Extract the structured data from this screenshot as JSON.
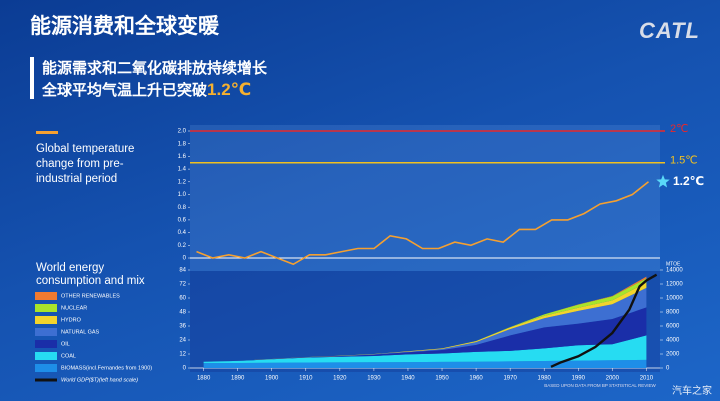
{
  "title": "能源消费和全球变暖",
  "logo": "CATL",
  "subtitle": {
    "line1": "能源需求和二氧化碳排放持续增长",
    "line2": "全球平均气温上升已突破",
    "highlight": "1.2℃"
  },
  "watermark": "汽车之家",
  "chart_data": [
    {
      "type": "line",
      "legend": "Global temperature change from pre-industrial period",
      "color": "#f5a030",
      "x": [
        1880,
        1885,
        1890,
        1895,
        1900,
        1905,
        1910,
        1915,
        1920,
        1925,
        1930,
        1935,
        1940,
        1945,
        1950,
        1955,
        1960,
        1965,
        1970,
        1975,
        1980,
        1985,
        1990,
        1995,
        2000,
        2005,
        2010,
        2015,
        2020
      ],
      "values": [
        0.1,
        0.0,
        0.05,
        0.0,
        0.1,
        0.0,
        -0.1,
        0.05,
        0.05,
        0.1,
        0.15,
        0.15,
        0.35,
        0.3,
        0.15,
        0.15,
        0.25,
        0.2,
        0.3,
        0.25,
        0.45,
        0.45,
        0.6,
        0.6,
        0.7,
        0.85,
        0.9,
        1.0,
        1.2
      ],
      "xlim": [
        1878,
        2022
      ],
      "ylim": [
        -0.2,
        2.0
      ],
      "yticks": [
        {
          "value": 2,
          "label": "2.0"
        },
        1.8,
        1.6,
        1.4,
        1.2,
        {
          "value": 1,
          "label": "1.0"
        },
        0.8,
        0.6,
        0.4,
        0.2,
        0
      ],
      "grid": false,
      "reference_lines": [
        {
          "value": 2,
          "label": "2℃",
          "color": "#e8282a"
        },
        {
          "value": 1.5,
          "label": "1.5℃",
          "color": "#f0c020"
        }
      ],
      "annotation": {
        "value": 1.2,
        "label": "1.2℃",
        "color": "#5ad8f8"
      }
    },
    {
      "type": "stacked-area",
      "legend": "World energy consumption and mix",
      "y2_label": "MTOE",
      "note": "BASED UPON DATA FROM BP STATISTICAL REVIEW",
      "x": [
        1880,
        1890,
        1900,
        1910,
        1920,
        1930,
        1940,
        1950,
        1960,
        1970,
        1980,
        1990,
        2000,
        2010
      ],
      "xlim": [
        1876,
        2014
      ],
      "xticks": [
        1880,
        1890,
        1900,
        1910,
        1920,
        1930,
        1940,
        1950,
        1960,
        1970,
        1980,
        1990,
        2000,
        2010
      ],
      "ylim": [
        0,
        84
      ],
      "yticks": [
        0,
        12,
        24,
        36,
        48,
        60,
        72,
        84
      ],
      "y2lim": [
        0,
        14000
      ],
      "y2ticks": [
        0,
        2000,
        4000,
        6000,
        8000,
        10000,
        12000,
        14000
      ],
      "series": [
        {
          "name": "BIOMASS(incl.Fernandes from 1900)",
          "color": "#1e8ee8",
          "axis": "y2",
          "values": [
            700,
            720,
            750,
            780,
            800,
            820,
            850,
            870,
            900,
            950,
            1000,
            1050,
            1100,
            1150
          ]
        },
        {
          "name": "COAL",
          "color": "#26dcf2",
          "axis": "y2",
          "values": [
            200,
            300,
            500,
            700,
            800,
            900,
            1100,
            1200,
            1400,
            1500,
            1800,
            2200,
            2300,
            3500
          ]
        },
        {
          "name": "OIL",
          "color": "#1a2ea8",
          "axis": "y2",
          "values": [
            0,
            10,
            20,
            50,
            100,
            200,
            300,
            500,
            1000,
            2200,
            3000,
            3100,
            3600,
            4000
          ]
        },
        {
          "name": "NATURAL GAS",
          "color": "#3d6fd2",
          "axis": "y2",
          "values": [
            0,
            0,
            5,
            10,
            20,
            50,
            80,
            150,
            400,
            900,
            1300,
            1800,
            2100,
            2800
          ]
        },
        {
          "name": "HYDRO",
          "color": "#f2d42c",
          "axis": "y2",
          "values": [
            0,
            0,
            5,
            10,
            20,
            30,
            50,
            80,
            150,
            250,
            350,
            450,
            550,
            750
          ]
        },
        {
          "name": "NUCLEAR",
          "color": "#a8e42a",
          "axis": "y2",
          "values": [
            0,
            0,
            0,
            0,
            0,
            0,
            0,
            0,
            5,
            50,
            200,
            450,
            580,
            600
          ]
        },
        {
          "name": "OTHER RENEWABLES",
          "color": "#f07a30",
          "axis": "y2",
          "values": [
            0,
            0,
            0,
            0,
            0,
            0,
            0,
            0,
            0,
            0,
            0,
            30,
            60,
            250
          ]
        },
        {
          "name": "World GDP($T)(left hand scale)",
          "color": "#111111",
          "axis": "y",
          "x": [
            1982,
            1985,
            1990,
            1995,
            2000,
            2005,
            2008,
            2010,
            2013
          ],
          "values": [
            1,
            5,
            10,
            18,
            30,
            50,
            70,
            75,
            80
          ]
        }
      ]
    }
  ]
}
